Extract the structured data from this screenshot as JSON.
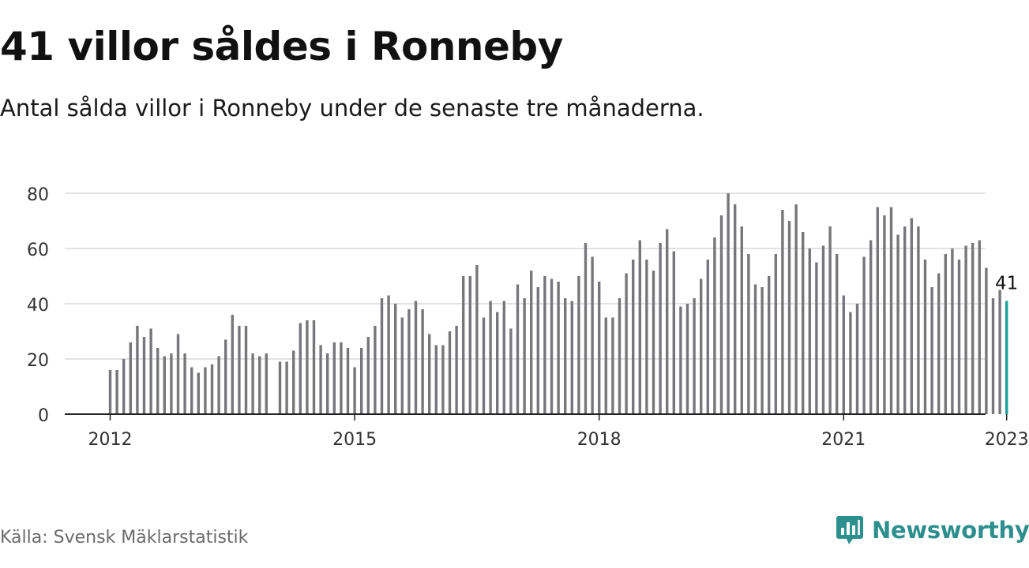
{
  "header": {
    "title": "41 villor såldes i Ronneby",
    "subtitle": "Antal sålda villor i Ronneby under de senaste tre månaderna."
  },
  "footer": {
    "source": "Källa: Svensk Mäklarstatistik",
    "brand": "Newsworthy",
    "brand_icon": "bar-chart-speech-bubble-icon"
  },
  "colors": {
    "bar": "#77777b",
    "highlight": "#1ea09c",
    "grid": "#d9d9d9",
    "axis": "#222222",
    "brand": "#2d8f8d"
  },
  "chart_data": {
    "type": "bar",
    "title": "41 villor såldes i Ronneby",
    "subtitle": "Antal sålda villor i Ronneby under de senaste tre månaderna.",
    "xlabel": "",
    "ylabel": "",
    "ylim": [
      0,
      80
    ],
    "yticks": [
      0,
      20,
      40,
      60,
      80
    ],
    "xticks": [
      "2012",
      "2015",
      "2018",
      "2021",
      "2023"
    ],
    "grid": true,
    "start_month": "2012-01",
    "end_month": "2023-01",
    "highlight_label": "41",
    "values": [
      16,
      16,
      20,
      26,
      32,
      28,
      31,
      24,
      21,
      22,
      29,
      22,
      17,
      15,
      17,
      18,
      21,
      27,
      36,
      32,
      32,
      22,
      21,
      22,
      null,
      19,
      19,
      23,
      33,
      34,
      34,
      25,
      22,
      26,
      26,
      24,
      17,
      24,
      28,
      32,
      42,
      43,
      40,
      35,
      38,
      41,
      38,
      29,
      25,
      25,
      30,
      32,
      50,
      50,
      54,
      35,
      41,
      37,
      41,
      31,
      47,
      42,
      52,
      46,
      50,
      49,
      48,
      42,
      41,
      50,
      62,
      57,
      48,
      35,
      35,
      42,
      51,
      56,
      63,
      56,
      52,
      62,
      67,
      59,
      39,
      40,
      42,
      49,
      56,
      64,
      72,
      80,
      76,
      68,
      58,
      47,
      46,
      50,
      58,
      74,
      70,
      76,
      66,
      60,
      55,
      61,
      68,
      58,
      43,
      37,
      40,
      57,
      63,
      75,
      72,
      75,
      65,
      68,
      71,
      68,
      56,
      46,
      51,
      58,
      60,
      56,
      61,
      62,
      63,
      53,
      42,
      45,
      41
    ]
  }
}
